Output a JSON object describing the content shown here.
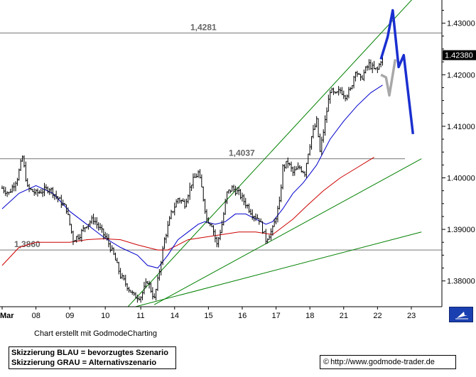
{
  "chart_data": {
    "type": "candlestick-line",
    "y_range": [
      1.375,
      1.4345
    ],
    "x_axis_labels": [
      "Mar",
      "08",
      "09",
      "10",
      "11",
      "14",
      "15",
      "16",
      "17",
      "18",
      "21",
      "22",
      "23"
    ],
    "y_ticks": [
      {
        "value": 1.38,
        "label": "1.38000"
      },
      {
        "value": 1.39,
        "label": "1.39000"
      },
      {
        "value": 1.4,
        "label": "1.40000"
      },
      {
        "value": 1.41,
        "label": "1.41000"
      },
      {
        "value": 1.42,
        "label": "1.42000"
      },
      {
        "value": 1.43,
        "label": "1.43000"
      }
    ],
    "current_price": {
      "value": 1.4238,
      "label": "1.42380"
    },
    "horizontal_levels": [
      {
        "value": 1.4281,
        "label": "1,4281"
      },
      {
        "value": 1.4037,
        "label": "1,4037"
      },
      {
        "value": 1.386,
        "label": "1,3860"
      }
    ],
    "price_keypoints": [
      [
        0,
        1.398
      ],
      [
        4,
        1.397
      ],
      [
        9,
        1.4
      ],
      [
        12,
        1.404
      ],
      [
        15,
        1.398
      ],
      [
        20,
        1.397
      ],
      [
        28,
        1.398
      ],
      [
        33,
        1.396
      ],
      [
        38,
        1.394
      ],
      [
        42,
        1.388
      ],
      [
        46,
        1.389
      ],
      [
        50,
        1.391
      ],
      [
        54,
        1.392
      ],
      [
        58,
        1.39
      ],
      [
        62,
        1.388
      ],
      [
        66,
        1.385
      ],
      [
        70,
        1.381
      ],
      [
        74,
        1.379
      ],
      [
        78,
        1.377
      ],
      [
        82,
        1.377
      ],
      [
        86,
        1.38
      ],
      [
        90,
        1.3765
      ],
      [
        92,
        1.38
      ],
      [
        96,
        1.388
      ],
      [
        100,
        1.393
      ],
      [
        104,
        1.396
      ],
      [
        108,
        1.395
      ],
      [
        112,
        1.399
      ],
      [
        116,
        1.401
      ],
      [
        118,
        1.398
      ],
      [
        121,
        1.392
      ],
      [
        124,
        1.391
      ],
      [
        127,
        1.387
      ],
      [
        130,
        1.391
      ],
      [
        133,
        1.397
      ],
      [
        136,
        1.398
      ],
      [
        140,
        1.397
      ],
      [
        144,
        1.395
      ],
      [
        148,
        1.393
      ],
      [
        152,
        1.392
      ],
      [
        156,
        1.388
      ],
      [
        160,
        1.39
      ],
      [
        164,
        1.395
      ],
      [
        166,
        1.402
      ],
      [
        169,
        1.403
      ],
      [
        172,
        1.401
      ],
      [
        176,
        1.402
      ],
      [
        179,
        1.401
      ],
      [
        181,
        1.405
      ],
      [
        183,
        1.408
      ],
      [
        186,
        1.411
      ],
      [
        188,
        1.405
      ],
      [
        191,
        1.411
      ],
      [
        194,
        1.417
      ],
      [
        197,
        1.416
      ],
      [
        200,
        1.417
      ],
      [
        203,
        1.416
      ],
      [
        206,
        1.417
      ],
      [
        209,
        1.421
      ],
      [
        212,
        1.419
      ],
      [
        215,
        1.421
      ],
      [
        217,
        1.422
      ],
      [
        220,
        1.421
      ],
      [
        222,
        1.421
      ],
      [
        225,
        1.4238
      ]
    ],
    "ma_blue": [
      [
        0,
        1.394
      ],
      [
        10,
        1.397
      ],
      [
        20,
        1.3985
      ],
      [
        30,
        1.397
      ],
      [
        40,
        1.3935
      ],
      [
        50,
        1.391
      ],
      [
        60,
        1.3885
      ],
      [
        70,
        1.3865
      ],
      [
        80,
        1.385
      ],
      [
        86,
        1.383
      ],
      [
        92,
        1.3825
      ],
      [
        98,
        1.385
      ],
      [
        104,
        1.388
      ],
      [
        110,
        1.3895
      ],
      [
        116,
        1.391
      ],
      [
        120,
        1.3915
      ],
      [
        126,
        1.391
      ],
      [
        132,
        1.3915
      ],
      [
        138,
        1.393
      ],
      [
        144,
        1.393
      ],
      [
        150,
        1.392
      ],
      [
        156,
        1.391
      ],
      [
        160,
        1.3915
      ],
      [
        166,
        1.394
      ],
      [
        172,
        1.397
      ],
      [
        178,
        1.399
      ],
      [
        186,
        1.4025
      ],
      [
        194,
        1.4075
      ],
      [
        202,
        1.411
      ],
      [
        210,
        1.414
      ],
      [
        218,
        1.4165
      ],
      [
        225,
        1.418
      ]
    ],
    "ma_red": [
      [
        0,
        1.383
      ],
      [
        10,
        1.3865
      ],
      [
        20,
        1.3875
      ],
      [
        30,
        1.3875
      ],
      [
        40,
        1.3875
      ],
      [
        50,
        1.388
      ],
      [
        60,
        1.3882
      ],
      [
        70,
        1.388
      ],
      [
        80,
        1.387
      ],
      [
        86,
        1.3865
      ],
      [
        92,
        1.386
      ],
      [
        98,
        1.386
      ],
      [
        104,
        1.387
      ],
      [
        110,
        1.388
      ],
      [
        120,
        1.3885
      ],
      [
        130,
        1.389
      ],
      [
        140,
        1.3895
      ],
      [
        150,
        1.3895
      ],
      [
        160,
        1.389
      ],
      [
        166,
        1.3905
      ],
      [
        172,
        1.392
      ],
      [
        180,
        1.3945
      ],
      [
        190,
        1.3975
      ],
      [
        200,
        1.4
      ],
      [
        210,
        1.402
      ],
      [
        220,
        1.404
      ]
    ],
    "trendlines": [
      [
        [
          73,
          1.3745
        ],
        [
          245,
          1.4355
        ]
      ],
      [
        [
          90,
          1.3754
        ],
        [
          248,
          1.4037
        ]
      ],
      [
        [
          73,
          1.3745
        ],
        [
          248,
          1.3895
        ]
      ]
    ],
    "scenario_blue": [
      [
        224,
        1.423
      ],
      [
        228,
        1.4273
      ],
      [
        231,
        1.4325
      ],
      [
        234.5,
        1.4215
      ],
      [
        237.5,
        1.4238
      ],
      [
        243,
        1.4085
      ]
    ],
    "scenario_gray": [
      [
        224,
        1.42
      ],
      [
        227,
        1.4195
      ],
      [
        229,
        1.416
      ],
      [
        232.5,
        1.423
      ]
    ],
    "notes": {
      "credit": "Chart erstellt mit GodmodeCharting",
      "legend_blue": "Skizzierung BLAU = bevorzugtes Szenario",
      "legend_gray": "Skizzierung GRAU = Alternativszenario",
      "url": "http://www.godmode-trader.de"
    }
  }
}
